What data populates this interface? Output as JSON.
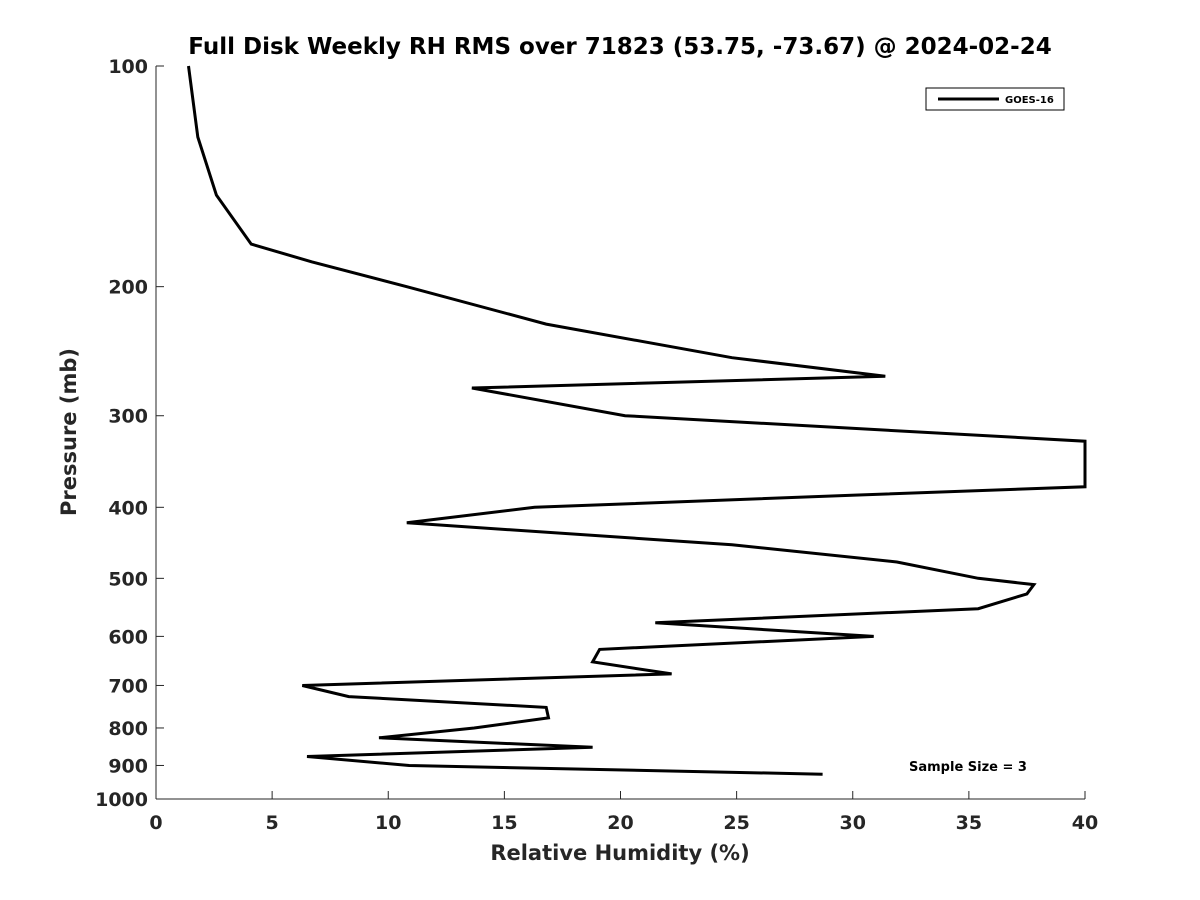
{
  "chart_data": {
    "type": "line",
    "title": "Full Disk Weekly RH RMS over 71823 (53.75, -73.67) @ 2024-02-24",
    "xlabel": "Relative Humidity (%)",
    "ylabel": "Pressure (mb)",
    "xlim": [
      0,
      40
    ],
    "ylim": [
      100,
      1000
    ],
    "yscale": "log",
    "y_reversed": true,
    "grid": false,
    "xticks": [
      "0",
      "5",
      "10",
      "15",
      "20",
      "25",
      "30",
      "35",
      "40"
    ],
    "yticks": [
      "100",
      "200",
      "300",
      "400",
      "500",
      "600",
      "700",
      "800",
      "900",
      "1000"
    ],
    "legend_position": "top-right",
    "line_color": "#000000",
    "series": [
      {
        "name": "GOES-16",
        "points": [
          [
            1.4,
            100
          ],
          [
            1.8,
            125
          ],
          [
            2.6,
            150
          ],
          [
            4.1,
            175
          ],
          [
            6.7,
            185
          ],
          [
            10.8,
            200
          ],
          [
            16.8,
            225
          ],
          [
            24.8,
            250
          ],
          [
            31.4,
            265
          ],
          [
            13.6,
            275
          ],
          [
            20.2,
            300
          ],
          [
            40.0,
            325
          ],
          [
            40.0,
            375
          ],
          [
            30.1,
            385
          ],
          [
            16.3,
            400
          ],
          [
            10.8,
            420
          ],
          [
            24.8,
            450
          ],
          [
            31.9,
            475
          ],
          [
            35.4,
            500
          ],
          [
            37.8,
            510
          ],
          [
            37.5,
            525
          ],
          [
            35.4,
            550
          ],
          [
            21.5,
            575
          ],
          [
            30.9,
            600
          ],
          [
            19.1,
            625
          ],
          [
            18.8,
            650
          ],
          [
            22.2,
            675
          ],
          [
            6.3,
            700
          ],
          [
            8.3,
            725
          ],
          [
            16.8,
            750
          ],
          [
            16.9,
            775
          ],
          [
            13.7,
            800
          ],
          [
            9.6,
            825
          ],
          [
            18.8,
            850
          ],
          [
            6.5,
            875
          ],
          [
            10.9,
            900
          ],
          [
            28.7,
            925
          ]
        ]
      }
    ],
    "annotations": [
      "Sample Size = 3"
    ]
  }
}
